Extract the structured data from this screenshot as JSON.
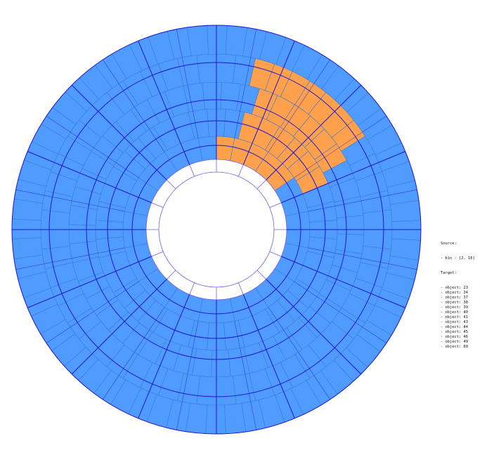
{
  "colors": {
    "background": "#ffffff",
    "cell_fill": "#4f9bff",
    "highlight_fill": "#ffa04d",
    "cell_border": "#3a7bd1",
    "grid_line": "#1e16d6",
    "inner_line": "#6f5ff0"
  },
  "legend": {
    "source_title": "Source:",
    "source_items": [
      "- bin : [2, 16]"
    ],
    "target_title": "Target:",
    "target_items": [
      "- object: 23",
      "- object: 34",
      "- object: 37",
      "- object: 38",
      "- object: 39",
      "- object: 40",
      "- object: 41",
      "- object: 43",
      "- object: 44",
      "- object: 45",
      "- object: 46",
      "- object: 49",
      "- object: 60"
    ]
  }
}
